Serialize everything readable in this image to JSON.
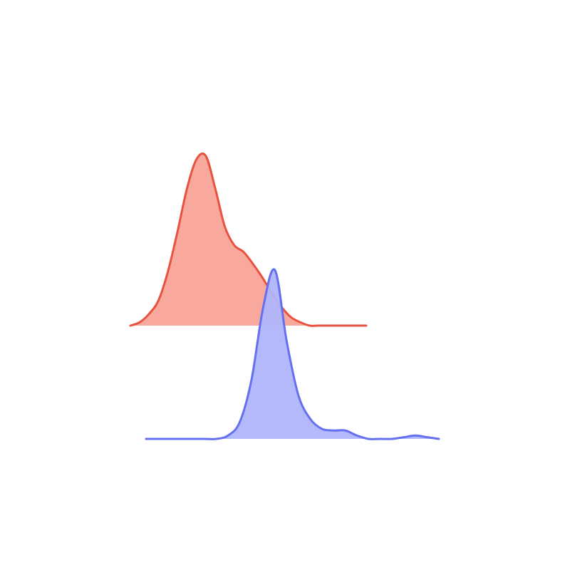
{
  "chart_data": {
    "type": "area",
    "chart_kind": "ridgeline-density",
    "title": "",
    "xlabel": "",
    "ylabel": "",
    "xlim": [
      0,
      100
    ],
    "axes_visible": false,
    "grid": false,
    "legend": "none",
    "series": [
      {
        "name": "",
        "color": "#e8523f",
        "fill": "#f8a89d",
        "x": [
          0,
          4,
          8,
          12,
          16,
          20,
          24,
          28,
          32,
          36,
          40,
          44,
          48,
          52,
          56,
          60,
          64,
          68,
          72,
          76,
          80,
          84,
          88,
          92,
          96,
          100
        ],
        "values": [
          0.0,
          0.02,
          0.07,
          0.15,
          0.32,
          0.55,
          0.8,
          0.97,
          0.99,
          0.8,
          0.58,
          0.47,
          0.43,
          0.36,
          0.28,
          0.19,
          0.11,
          0.05,
          0.02,
          0.0,
          0.0,
          0.0,
          0.0,
          0.0,
          0.0,
          0.0
        ]
      },
      {
        "name": "",
        "color": "#6470f0",
        "fill": "#afb5fb",
        "x": [
          0,
          4,
          8,
          12,
          16,
          20,
          24,
          28,
          32,
          36,
          40,
          44,
          48,
          52,
          56,
          60,
          64,
          68,
          72,
          76,
          80,
          84,
          88,
          92,
          96,
          100
        ],
        "values": [
          0.0,
          0.0,
          0.0,
          0.0,
          0.0,
          0.0,
          0.0,
          0.02,
          0.1,
          0.35,
          0.78,
          1.0,
          0.58,
          0.26,
          0.12,
          0.06,
          0.05,
          0.05,
          0.02,
          0.0,
          0.0,
          0.0,
          0.01,
          0.02,
          0.01,
          0.0
        ]
      }
    ]
  }
}
